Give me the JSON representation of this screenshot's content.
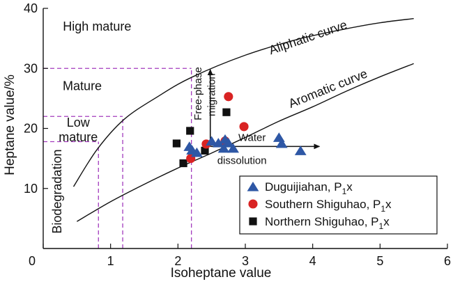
{
  "chart_data": {
    "type": "scatter",
    "xlabel": "Isoheptane value",
    "ylabel": "Heptane value/%",
    "xlim": [
      0,
      6
    ],
    "ylim": [
      0,
      40
    ],
    "x_ticks": [
      "0",
      "1",
      "2",
      "3",
      "4",
      "5",
      "6"
    ],
    "y_ticks": [
      "10",
      "20",
      "30",
      "40"
    ],
    "grid": false,
    "legend_position": "bottom-right",
    "zones": [
      "High mature",
      "Mature",
      "Low\nmature",
      "Biodegradation"
    ],
    "curves": [
      {
        "label": "Aliphatic curve",
        "points": [
          [
            0.45,
            10.3
          ],
          [
            0.8,
            16.5
          ],
          [
            1.2,
            21.5
          ],
          [
            1.7,
            25.3
          ],
          [
            2.2,
            28.5
          ],
          [
            3.0,
            32.2
          ],
          [
            3.8,
            34.9
          ],
          [
            4.5,
            36.6
          ],
          [
            5.0,
            37.6
          ],
          [
            5.5,
            38.3
          ]
        ]
      },
      {
        "label": "Aromatic curve",
        "points": [
          [
            0.5,
            4.5
          ],
          [
            1.0,
            7.8
          ],
          [
            1.5,
            10.7
          ],
          [
            2.0,
            13.4
          ],
          [
            2.5,
            15.9
          ],
          [
            3.0,
            18.5
          ],
          [
            3.5,
            21.2
          ],
          [
            4.0,
            23.6
          ],
          [
            4.5,
            26.2
          ],
          [
            5.0,
            28.6
          ],
          [
            5.5,
            30.8
          ]
        ]
      }
    ],
    "threshold_lines": {
      "color": "#a23bbd",
      "horizontal": [
        {
          "y": 30,
          "x_from": 0,
          "x_to": 2.2
        },
        {
          "y": 22,
          "x_from": 0,
          "x_to": 1.18
        },
        {
          "y": 17.8,
          "x_from": 0,
          "x_to": 0.82
        }
      ],
      "vertical": [
        {
          "x": 2.2,
          "y_from": 0,
          "y_to": 30
        },
        {
          "x": 1.18,
          "y_from": 0,
          "y_to": 22
        },
        {
          "x": 0.82,
          "y_from": 0,
          "y_to": 17.8
        }
      ]
    },
    "annotations": [
      {
        "text": "Free-phase",
        "rotate": -90,
        "x": 2.35,
        "y": 25.8
      },
      {
        "text": "migration",
        "rotate": -90,
        "x": 2.55,
        "y": 25.6
      },
      {
        "text": "Water",
        "x": 3.1,
        "y": 17.9
      },
      {
        "text": "dissolution",
        "x": 2.95,
        "y": 14.1
      }
    ],
    "arrows": [
      {
        "from": [
          2.48,
          17.0
        ],
        "to": [
          2.48,
          29.8
        ]
      },
      {
        "from": [
          2.48,
          17.0
        ],
        "to": [
          4.1,
          17.0
        ]
      }
    ],
    "series": [
      {
        "name": "Duguijiahan, P",
        "name_subscript": "1",
        "name_suffix": "x",
        "marker": "triangle",
        "color": "#2e57a5",
        "x": [
          2.17,
          2.21,
          2.28,
          2.5,
          2.6,
          2.7,
          2.75,
          2.68,
          2.82,
          3.5,
          3.54,
          3.82
        ],
        "y": [
          16.9,
          16.3,
          15.9,
          17.8,
          17.5,
          18.1,
          17.5,
          16.6,
          16.6,
          18.4,
          17.4,
          16.2
        ]
      },
      {
        "name": "Southern Shiguhao, P",
        "name_subscript": "1",
        "name_suffix": "x",
        "marker": "circle",
        "color": "#d92323",
        "x": [
          2.75,
          2.98,
          2.42,
          2.7,
          2.19
        ],
        "y": [
          25.3,
          20.3,
          17.4,
          17.9,
          15.0
        ]
      },
      {
        "name": "Northern Shiguhao, P",
        "name_subscript": "1",
        "name_suffix": "x",
        "marker": "square",
        "color": "#111111",
        "x": [
          2.72,
          2.18,
          1.98,
          2.4,
          2.08
        ],
        "y": [
          22.7,
          19.6,
          17.5,
          16.3,
          14.2
        ]
      }
    ]
  }
}
